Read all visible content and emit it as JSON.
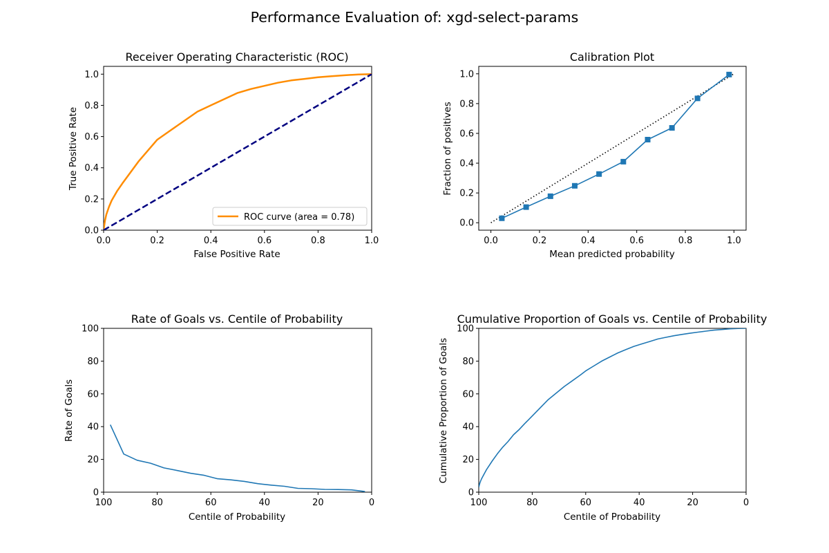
{
  "figure": {
    "suptitle": "Performance Evaluation of: xgd-select-params"
  },
  "chart_data": [
    {
      "id": "roc",
      "type": "line",
      "title": "Receiver Operating Characteristic (ROC)",
      "xlabel": "False Positive Rate",
      "ylabel": "True Positive Rate",
      "xlim": [
        0,
        1
      ],
      "ylim": [
        0,
        1.05
      ],
      "x_ticks": [
        0.0,
        0.2,
        0.4,
        0.6,
        0.8,
        1.0
      ],
      "x_tick_labels": [
        "0.0",
        "0.2",
        "0.4",
        "0.6",
        "0.8",
        "1.0"
      ],
      "y_ticks": [
        0.0,
        0.2,
        0.4,
        0.6,
        0.8,
        1.0
      ],
      "y_tick_labels": [
        "0.0",
        "0.2",
        "0.4",
        "0.6",
        "0.8",
        "1.0"
      ],
      "legend_position": "lower-right",
      "series": [
        {
          "name": "ROC curve (area = 0.78)",
          "color": "#ff8c00",
          "style": "solid",
          "x": [
            0,
            0.005,
            0.01,
            0.02,
            0.03,
            0.05,
            0.07,
            0.1,
            0.13,
            0.16,
            0.2,
            0.25,
            0.3,
            0.35,
            0.4,
            0.45,
            0.5,
            0.55,
            0.6,
            0.65,
            0.7,
            0.75,
            0.8,
            0.85,
            0.9,
            0.95,
            1.0
          ],
          "y": [
            0,
            0.06,
            0.1,
            0.15,
            0.19,
            0.25,
            0.3,
            0.37,
            0.44,
            0.5,
            0.58,
            0.64,
            0.7,
            0.76,
            0.8,
            0.84,
            0.88,
            0.905,
            0.925,
            0.945,
            0.96,
            0.97,
            0.98,
            0.987,
            0.993,
            0.998,
            1.0
          ]
        },
        {
          "name": "",
          "color": "#000080",
          "style": "dashed",
          "x": [
            0,
            1
          ],
          "y": [
            0,
            1
          ]
        }
      ]
    },
    {
      "id": "calibration",
      "type": "line",
      "title": "Calibration Plot",
      "xlabel": "Mean predicted probability",
      "ylabel": "Fraction of positives",
      "xlim": [
        -0.05,
        1.05
      ],
      "ylim": [
        -0.05,
        1.05
      ],
      "x_ticks": [
        0.0,
        0.2,
        0.4,
        0.6,
        0.8,
        1.0
      ],
      "x_tick_labels": [
        "0.0",
        "0.2",
        "0.4",
        "0.6",
        "0.8",
        "1.0"
      ],
      "y_ticks": [
        0.0,
        0.2,
        0.4,
        0.6,
        0.8,
        1.0
      ],
      "y_tick_labels": [
        "0.0",
        "0.2",
        "0.4",
        "0.6",
        "0.8",
        "1.0"
      ],
      "series": [
        {
          "name": "",
          "color": "#000000",
          "style": "dotted",
          "x": [
            0,
            1
          ],
          "y": [
            0,
            1
          ]
        },
        {
          "name": "",
          "color": "#1f77b4",
          "style": "solid",
          "marker": "square",
          "x": [
            0.045,
            0.145,
            0.245,
            0.345,
            0.445,
            0.545,
            0.645,
            0.745,
            0.85,
            0.98
          ],
          "y": [
            0.03,
            0.105,
            0.178,
            0.248,
            0.327,
            0.41,
            0.558,
            0.637,
            0.835,
            0.995
          ]
        }
      ]
    },
    {
      "id": "rate-goals",
      "type": "line",
      "title": "Rate of Goals vs. Centile of Probability",
      "xlabel": "Centile of Probability",
      "ylabel": "Rate of Goals",
      "xlim": [
        100,
        0
      ],
      "ylim": [
        0,
        100
      ],
      "x_ticks": [
        100,
        80,
        60,
        40,
        20,
        0
      ],
      "x_tick_labels": [
        "100",
        "80",
        "60",
        "40",
        "20",
        "0"
      ],
      "y_ticks": [
        0,
        20,
        40,
        60,
        80,
        100
      ],
      "y_tick_labels": [
        "0",
        "20",
        "40",
        "60",
        "80",
        "100"
      ],
      "series": [
        {
          "name": "",
          "color": "#1f77b4",
          "style": "solid",
          "x": [
            97.5,
            92.5,
            87.5,
            82.5,
            77.5,
            72.5,
            67.5,
            62.5,
            57.5,
            52.5,
            47.5,
            42.5,
            37.5,
            32.5,
            27.5,
            22.5,
            17.5,
            12.5,
            7.5,
            2.5
          ],
          "y": [
            41.2,
            23.3,
            19.5,
            17.7,
            14.8,
            13.2,
            11.5,
            10.3,
            8.2,
            7.5,
            6.6,
            5.2,
            4.3,
            3.6,
            2.3,
            2.1,
            1.7,
            1.6,
            1.4,
            0.4
          ]
        }
      ]
    },
    {
      "id": "cumulative-goals",
      "type": "line",
      "title": "Cumulative Proportion of Goals vs. Centile of Probability",
      "xlabel": "Centile of Probability",
      "ylabel": "Cumulative Proportion of Goals",
      "xlim": [
        100,
        0
      ],
      "ylim": [
        0,
        100
      ],
      "x_ticks": [
        100,
        80,
        60,
        40,
        20,
        0
      ],
      "x_tick_labels": [
        "100",
        "80",
        "60",
        "40",
        "20",
        "0"
      ],
      "y_ticks": [
        0,
        20,
        40,
        60,
        80,
        100
      ],
      "y_tick_labels": [
        "0",
        "20",
        "40",
        "60",
        "80",
        "100"
      ],
      "series": [
        {
          "name": "",
          "color": "#1f77b4",
          "style": "solid",
          "x": [
            100,
            99.5,
            99,
            98,
            97,
            96,
            95,
            93,
            91,
            89,
            87,
            85,
            83,
            80,
            77,
            74,
            71,
            68,
            65,
            62,
            60,
            57,
            54,
            51,
            48,
            45,
            42,
            39,
            36,
            33,
            30,
            27,
            24,
            21,
            18,
            15,
            12,
            9,
            6,
            3,
            0
          ],
          "y": [
            3,
            6,
            8,
            11,
            14,
            16.5,
            19,
            23.5,
            27.5,
            31,
            35,
            38,
            41.5,
            46.5,
            51.5,
            56.5,
            60.5,
            64.5,
            68,
            71.5,
            74,
            77,
            80,
            82.5,
            85,
            87,
            89,
            90.5,
            92,
            93.5,
            94.5,
            95.5,
            96.3,
            97,
            97.7,
            98.3,
            98.9,
            99.3,
            99.7,
            99.9,
            100
          ]
        }
      ]
    }
  ]
}
